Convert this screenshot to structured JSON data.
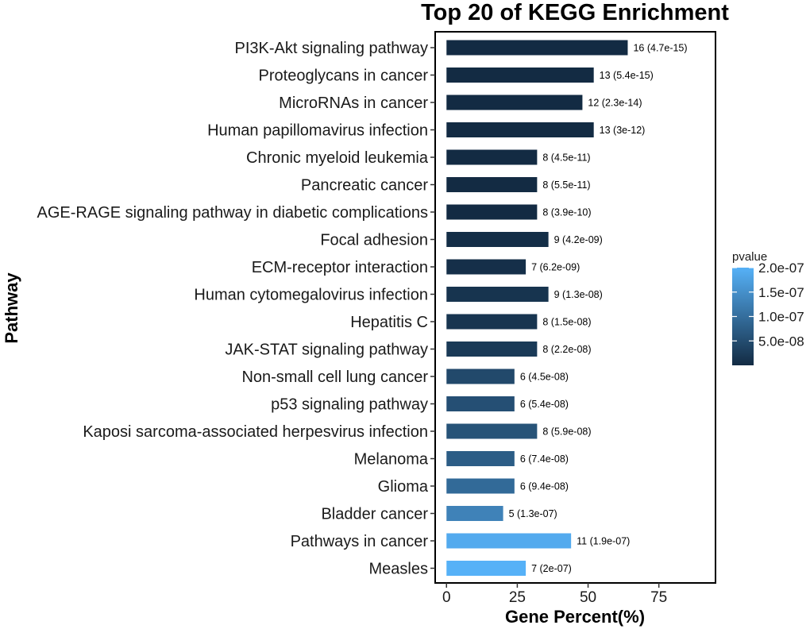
{
  "chart_data": {
    "type": "bar",
    "orientation": "horizontal",
    "title": "Top 20 of KEGG Enrichment",
    "xlabel": "Gene Percent(%)",
    "ylabel": "Pathway",
    "xlim": [
      -4,
      95
    ],
    "xticks": [
      "0",
      "25",
      "50",
      "75"
    ],
    "xtick_values": [
      0,
      25,
      50,
      75
    ],
    "grid": false,
    "legend": {
      "title": "pvalue",
      "position": "right",
      "ticks": [
        "2.0e-07",
        "1.5e-07",
        "1.0e-07",
        "5.0e-08"
      ],
      "tick_values": [
        2e-07,
        1.5e-07,
        1e-07,
        5e-08
      ],
      "range": [
        4.7e-15,
        2e-07
      ],
      "colors": {
        "low": "#132b43",
        "high": "#56b1f7"
      }
    },
    "categories": [
      "PI3K-Akt signaling pathway",
      "Proteoglycans in cancer",
      "MicroRNAs in cancer",
      "Human papillomavirus infection",
      "Chronic myeloid leukemia",
      "Pancreatic cancer",
      "AGE-RAGE signaling pathway in diabetic complications",
      "Focal adhesion",
      "ECM-receptor interaction",
      "Human cytomegalovirus infection",
      "Hepatitis C",
      "JAK-STAT signaling pathway",
      "Non-small cell lung cancer",
      "p53 signaling pathway",
      "Kaposi sarcoma-associated herpesvirus infection",
      "Melanoma",
      "Glioma",
      "Bladder cancer",
      "Pathways in cancer",
      "Measles"
    ],
    "values": [
      64,
      52,
      48,
      52,
      32,
      32,
      32,
      36,
      28,
      36,
      32,
      32,
      24,
      24,
      32,
      24,
      24,
      20,
      44,
      28
    ],
    "pvalues": [
      4.7e-15,
      5.4e-15,
      2.3e-14,
      3e-12,
      4.5e-11,
      5.5e-11,
      3.9e-10,
      4.2e-09,
      6.2e-09,
      1.3e-08,
      1.5e-08,
      2.2e-08,
      4.5e-08,
      5.4e-08,
      5.9e-08,
      7.4e-08,
      9.4e-08,
      1.3e-07,
      1.9e-07,
      2e-07
    ],
    "data_labels": [
      "16 (4.7e-15)",
      "13 (5.4e-15)",
      "12 (2.3e-14)",
      "13 (3e-12)",
      "8 (4.5e-11)",
      "8 (5.5e-11)",
      "8 (3.9e-10)",
      "9 (4.2e-09)",
      "7 (6.2e-09)",
      "9 (1.3e-08)",
      "8 (1.5e-08)",
      "8 (2.2e-08)",
      "6 (4.5e-08)",
      "6 (5.4e-08)",
      "8 (5.9e-08)",
      "6 (7.4e-08)",
      "6 (9.4e-08)",
      "5 (1.3e-07)",
      "11 (1.9e-07)",
      "7 (2e-07)"
    ]
  }
}
